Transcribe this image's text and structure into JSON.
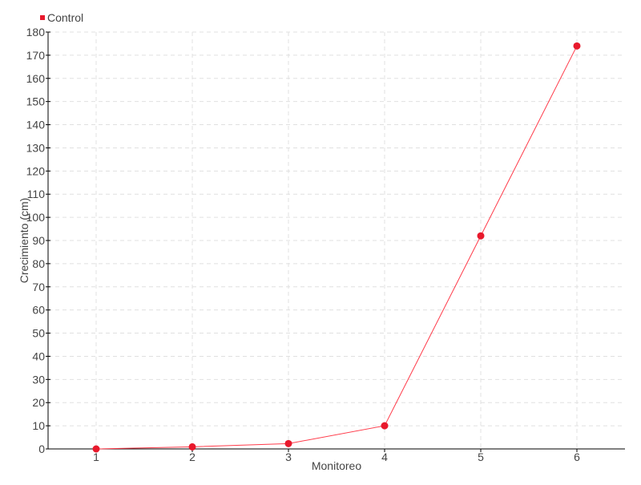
{
  "chart_data": {
    "type": "line",
    "title": "",
    "xlabel": "Monitoreo",
    "ylabel": "Crecimiento (cm)",
    "x": [
      1,
      2,
      3,
      4,
      5,
      6
    ],
    "xlim": [
      0.5,
      6.5
    ],
    "ylim": [
      0,
      180
    ],
    "ytick_step": 10,
    "grid": true,
    "legend_position": "top-left",
    "series": [
      {
        "name": "Control",
        "color": "#e8192c",
        "values": [
          0,
          0.9,
          2.3,
          10,
          92,
          174
        ]
      }
    ]
  }
}
